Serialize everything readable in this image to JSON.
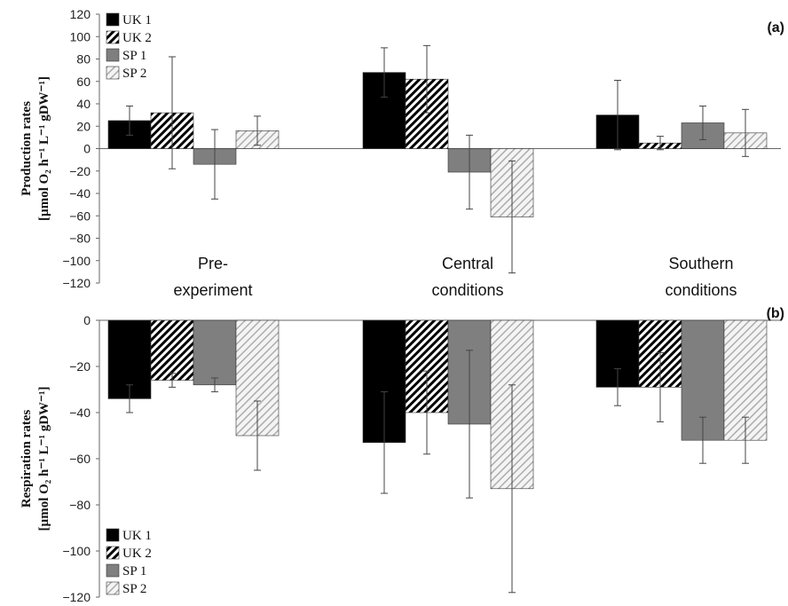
{
  "colors": {
    "UK 1": "#000000",
    "UK 2": "#ffffff",
    "SP 1": "#7f7f7f",
    "SP 2": "#f2f2f2"
  },
  "chart_data": [
    {
      "type": "bar",
      "panel_label": "(a)",
      "categories": [
        "Pre-experiment",
        "Central conditions",
        "Southern conditions"
      ],
      "category_label_lines": [
        [
          "Pre-",
          "experiment"
        ],
        [
          "Central",
          "conditions"
        ],
        [
          "Southern",
          "conditions"
        ]
      ],
      "ylabel_lines": [
        "Production rates",
        "[µmol O₂ h⁻¹ L⁻¹ gDW⁻¹]"
      ],
      "ylim": [
        -120,
        120
      ],
      "yticks": [
        120,
        100,
        80,
        60,
        40,
        20,
        0,
        -20,
        -40,
        -60,
        -80,
        -100,
        -120
      ],
      "ytick_labels": [
        "120",
        "100",
        "80",
        "60",
        "40",
        "20",
        "0",
        "−20",
        "−40",
        "−60",
        "−80",
        "−100",
        "−120"
      ],
      "legend": [
        "UK 1",
        "UK 2",
        "SP 1",
        "SP 2"
      ],
      "series": [
        {
          "name": "UK 1",
          "values": [
            25,
            68,
            30
          ],
          "errors": [
            13,
            22,
            31
          ]
        },
        {
          "name": "UK 2",
          "values": [
            32,
            62,
            5
          ],
          "errors": [
            50,
            30,
            6
          ]
        },
        {
          "name": "SP 1",
          "values": [
            -14,
            -21,
            23
          ],
          "errors": [
            31,
            33,
            15
          ]
        },
        {
          "name": "SP 2",
          "values": [
            16,
            -61,
            14
          ],
          "errors": [
            13,
            50,
            21
          ]
        }
      ]
    },
    {
      "type": "bar",
      "panel_label": "(b)",
      "categories": [
        "Pre-experiment",
        "Central conditions",
        "Southern conditions"
      ],
      "ylabel_lines": [
        "Respiration rates",
        "[µmol O₂ h⁻¹ L⁻¹ gDW⁻¹]"
      ],
      "ylim": [
        -120,
        0
      ],
      "yticks": [
        0,
        -20,
        -40,
        -60,
        -80,
        -100,
        -120
      ],
      "ytick_labels": [
        "0",
        "−20",
        "−40",
        "−60",
        "−80",
        "−100",
        "−120"
      ],
      "legend": [
        "UK 1",
        "UK 2",
        "SP 1",
        "SP 2"
      ],
      "series": [
        {
          "name": "UK 1",
          "values": [
            -34,
            -53,
            -29
          ],
          "errors": [
            6,
            22,
            8
          ]
        },
        {
          "name": "UK 2",
          "values": [
            -26,
            -40,
            -29
          ],
          "errors": [
            3,
            18,
            15
          ]
        },
        {
          "name": "SP 1",
          "values": [
            -28,
            -45,
            -52
          ],
          "errors": [
            3,
            32,
            10
          ]
        },
        {
          "name": "SP 2",
          "values": [
            -50,
            -73,
            -52
          ],
          "errors": [
            15,
            45,
            10
          ]
        }
      ]
    }
  ]
}
